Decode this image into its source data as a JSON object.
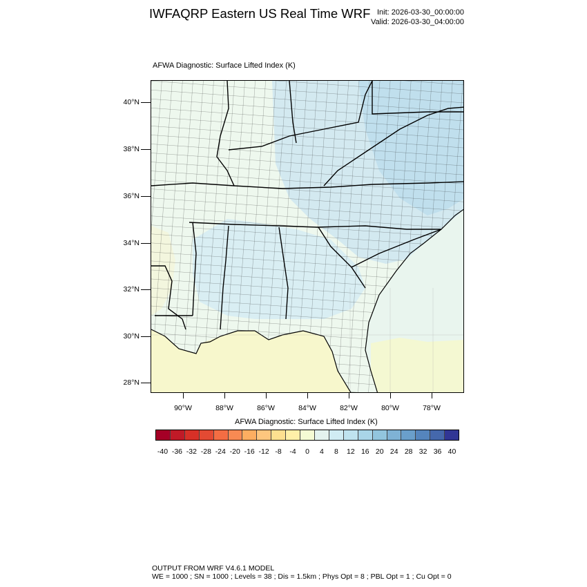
{
  "header": {
    "title": "IWFAQRP Eastern US Real Time WRF",
    "init": "Init: 2026-03-30_00:00:00",
    "valid": "Valid: 2026-03-30_04:00:00"
  },
  "panel": {
    "title": "AFWA Diagnostic: Surface Lifted Index   (K)"
  },
  "map": {
    "region": "Southeastern United States",
    "lat_labels": [
      "40°N",
      "38°N",
      "36°N",
      "34°N",
      "32°N",
      "30°N",
      "28°N"
    ],
    "lon_labels": [
      "90°W",
      "88°W",
      "86°W",
      "84°W",
      "82°W",
      "80°W",
      "78°W"
    ]
  },
  "colorbar": {
    "title": "AFWA Diagnostic: Surface Lifted Index  (K)",
    "labels": [
      "-40",
      "-36",
      "-32",
      "-28",
      "-24",
      "-20",
      "-16",
      "-12",
      "-8",
      "-4",
      "0",
      "4",
      "8",
      "12",
      "16",
      "20",
      "24",
      "28",
      "32",
      "36",
      "40"
    ],
    "colors": [
      "#a50026",
      "#c01a27",
      "#d73027",
      "#e34a33",
      "#f46d43",
      "#f88a53",
      "#fdae61",
      "#fec67e",
      "#fee090",
      "#fff0a8",
      "#f5fbd4",
      "#e4f3ef",
      "#d0ecf3",
      "#bfe3ef",
      "#a9d5e8",
      "#92c5de",
      "#7fb2d5",
      "#6a9fcb",
      "#5585bd",
      "#4568ac",
      "#313695"
    ]
  },
  "footer": {
    "line1": "OUTPUT FROM WRF V4.6.1 MODEL",
    "line2": "WE = 1000 ; SN = 1000 ; Levels = 38 ; Dis = 1.5km ; Phys Opt = 8 ; PBL Opt = 1 ; Cu Opt = 0"
  }
}
